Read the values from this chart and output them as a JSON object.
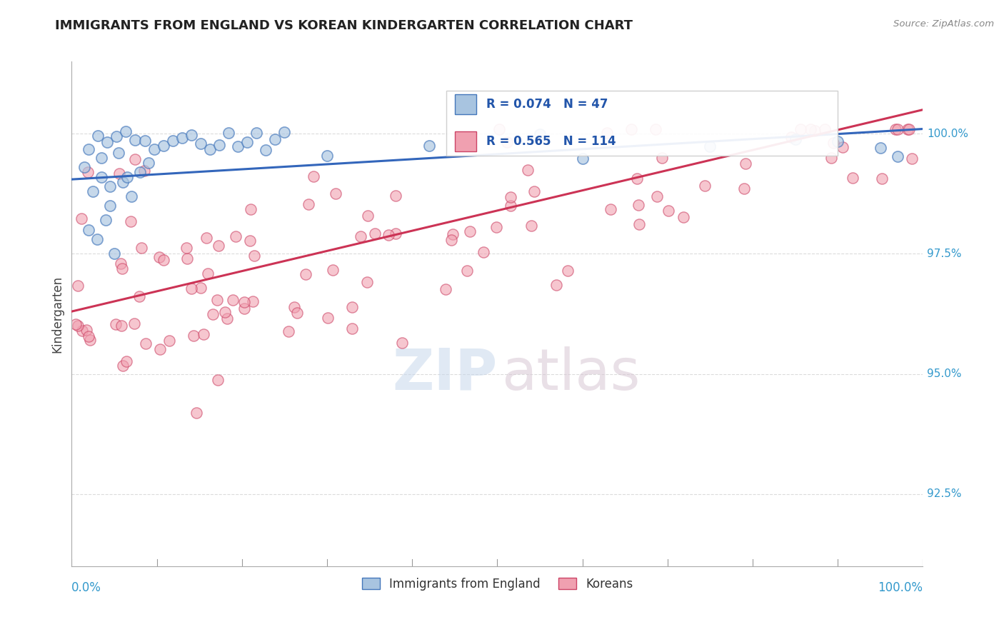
{
  "title": "IMMIGRANTS FROM ENGLAND VS KOREAN KINDERGARTEN CORRELATION CHART",
  "source": "Source: ZipAtlas.com",
  "ylabel": "Kindergarten",
  "legend_label_blue": "Immigrants from England",
  "legend_label_pink": "Koreans",
  "blue_R": 0.074,
  "blue_N": 47,
  "pink_R": 0.565,
  "pink_N": 114,
  "blue_color": "#A8C4E0",
  "pink_color": "#F0A0B0",
  "blue_edge_color": "#4477BB",
  "pink_edge_color": "#CC4466",
  "blue_line_color": "#3366BB",
  "pink_line_color": "#CC3355",
  "grid_color": "#CCCCCC",
  "xmin": 0.0,
  "xmax": 100.0,
  "ymin": 91.0,
  "ymax": 101.5,
  "ytick_positions": [
    92.5,
    95.0,
    97.5,
    100.0
  ],
  "ytick_labels": [
    "92.5%",
    "95.0%",
    "97.5%",
    "100.0%"
  ],
  "blue_trend_x": [
    0,
    100
  ],
  "blue_trend_y": [
    99.05,
    100.1
  ],
  "pink_trend_x": [
    0,
    100
  ],
  "pink_trend_y": [
    96.3,
    100.5
  ],
  "watermark_zip_color": "#C8D8EC",
  "watermark_atlas_color": "#D8C8D4",
  "legend_box_color": "#EEEEEE"
}
